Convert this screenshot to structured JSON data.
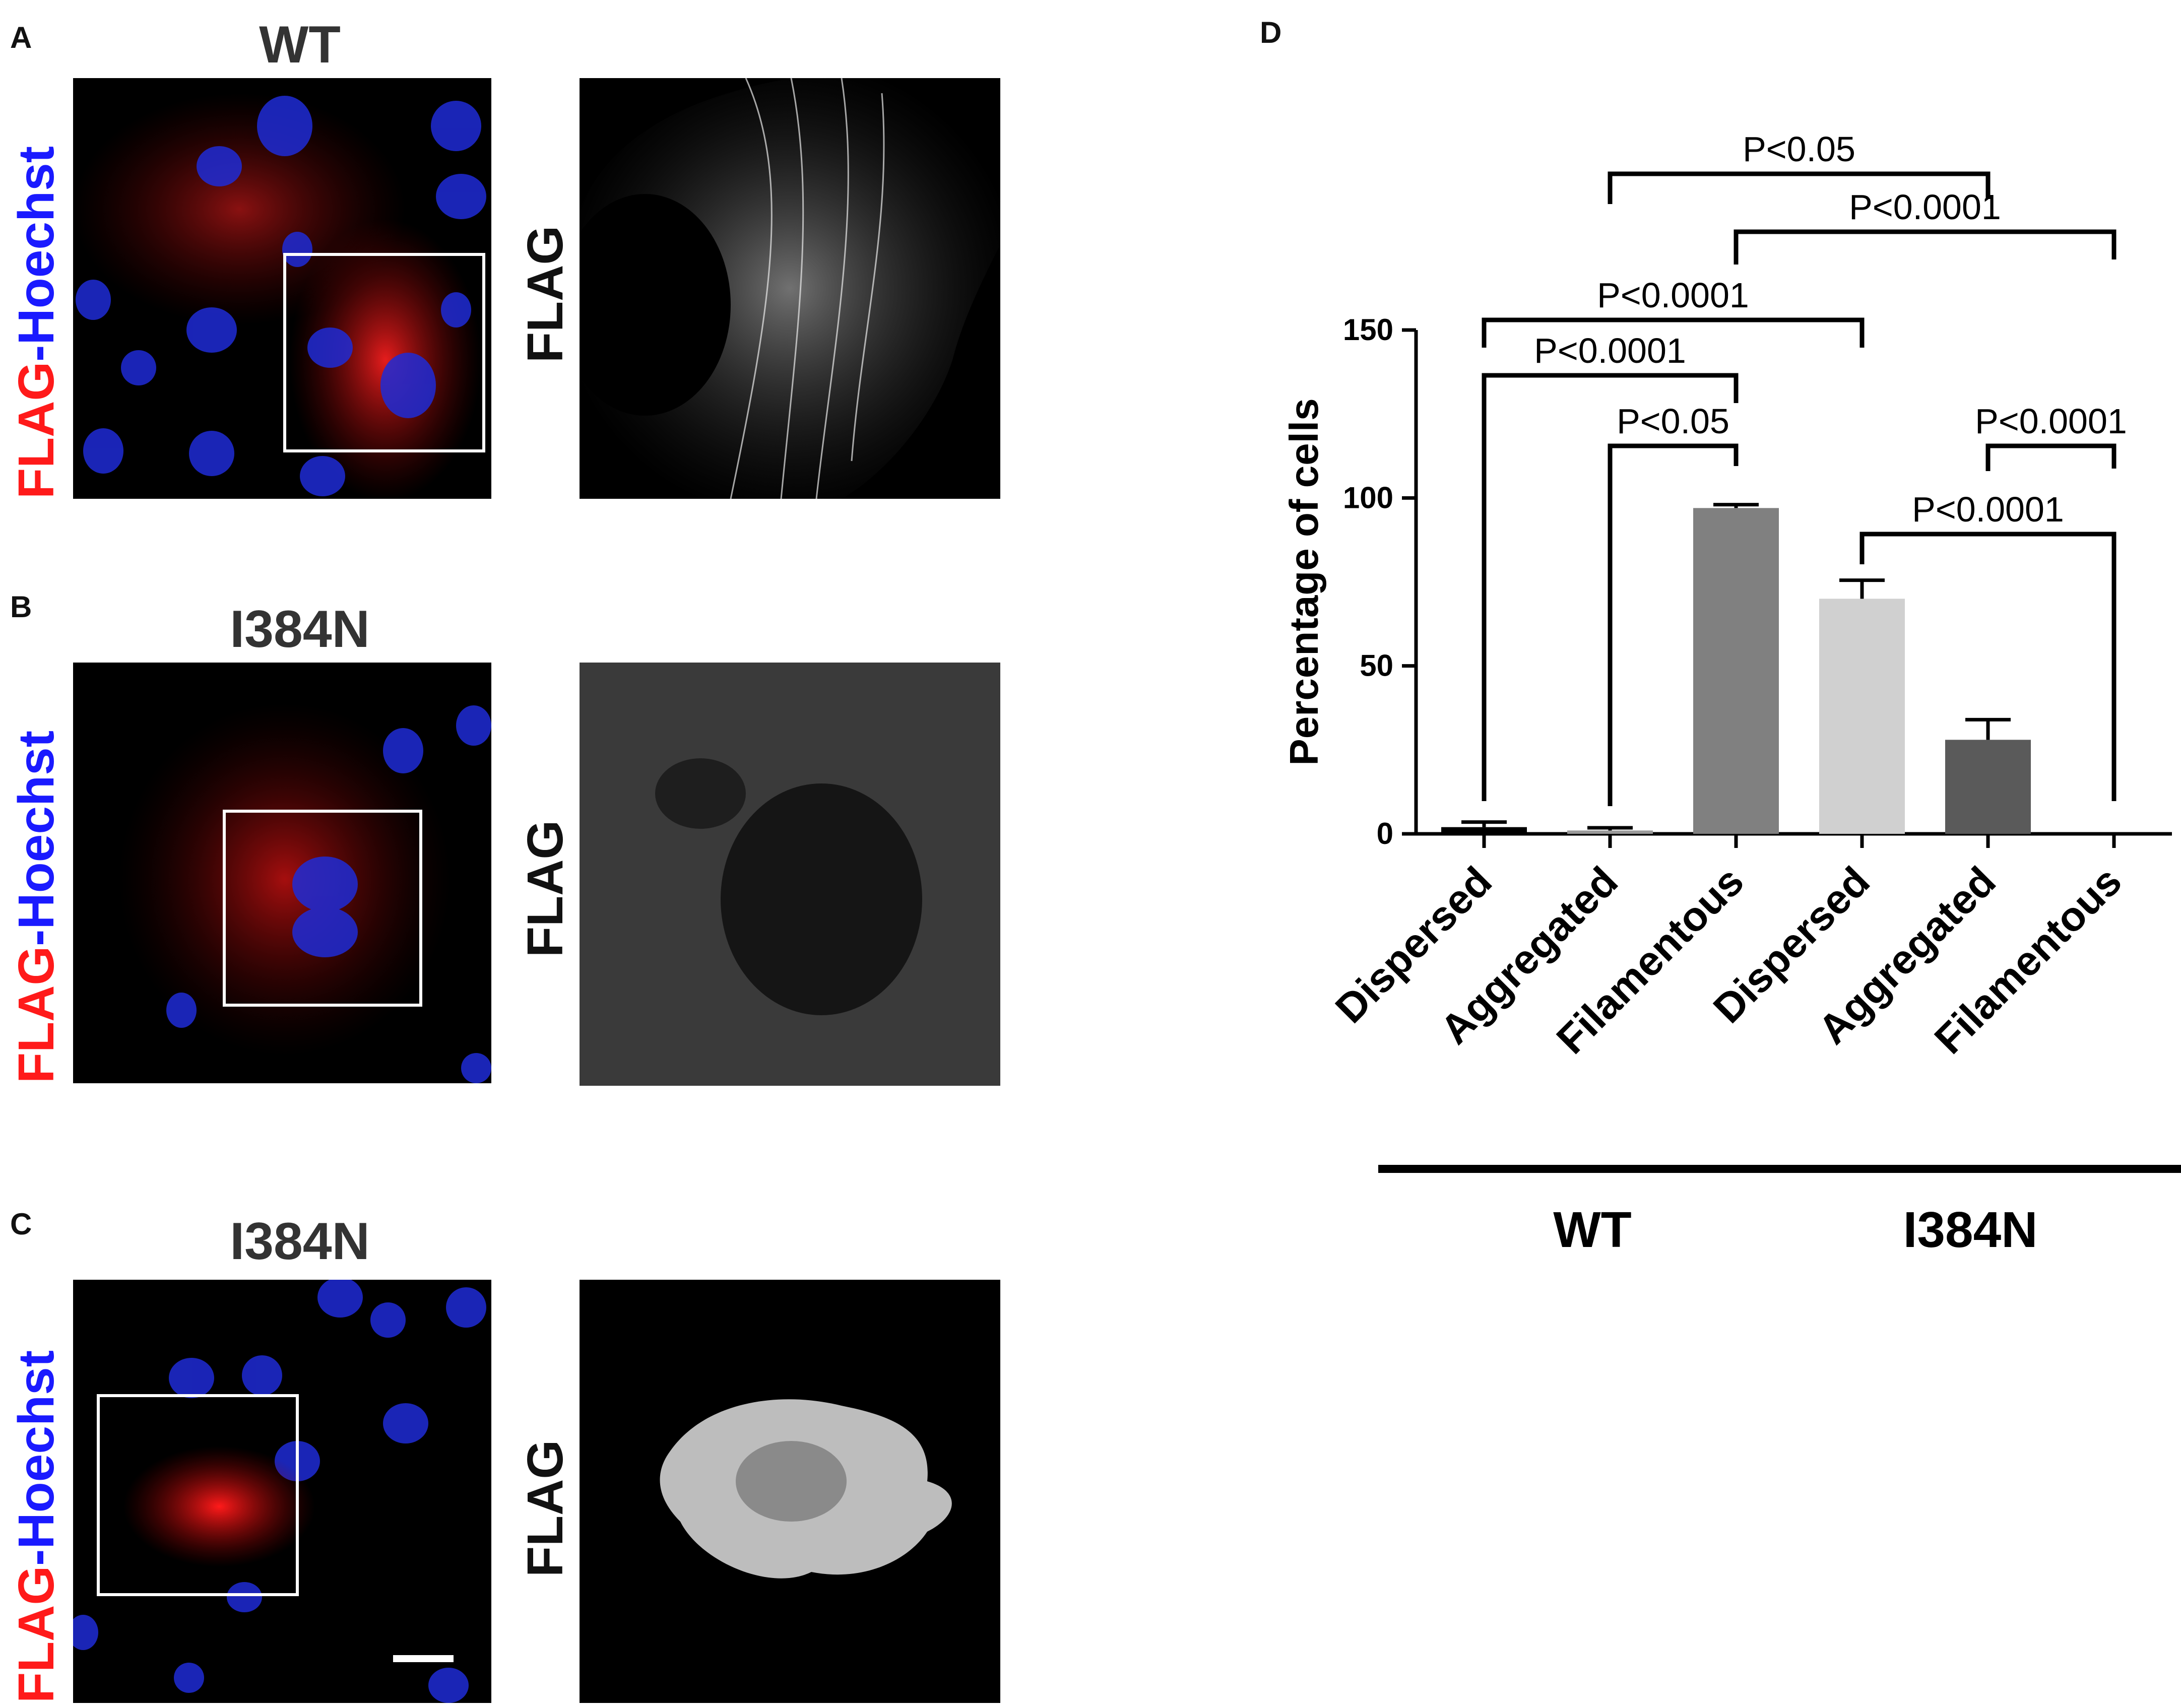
{
  "panels": [
    {
      "letter": "A",
      "condition": "WT"
    },
    {
      "letter": "B",
      "condition": "I384N"
    },
    {
      "letter": "C",
      "condition": "I384N"
    }
  ],
  "stain_label": {
    "flag": "FLAG",
    "dash": "-",
    "hoechst": "Hoechst"
  },
  "gray_label": "FLAG",
  "panel_d_letter": "D",
  "chart_data": {
    "type": "bar",
    "ylabel": "Percentage of cells",
    "ylim": [
      0,
      150
    ],
    "yticks": [
      0,
      50,
      100,
      150
    ],
    "categories": [
      "Dispersed",
      "Aggregated",
      "Filamentous",
      "Dispersed",
      "Aggregated",
      "Filamentous"
    ],
    "groups": [
      {
        "name": "WT",
        "categories": [
          0,
          1,
          2
        ]
      },
      {
        "name": "I384N",
        "categories": [
          3,
          4,
          5
        ]
      }
    ],
    "values": [
      2,
      1,
      97,
      70,
      28,
      0
    ],
    "errors": [
      1.5,
      0.8,
      1,
      5.5,
      6,
      0
    ],
    "bar_colors": [
      "#000000",
      "#9a9a9a",
      "#808080",
      "#d0d0d0",
      "#5a5a5a",
      "#ffffff"
    ],
    "comparisons": [
      {
        "a": 0,
        "b": 3,
        "label": "P<0.0001"
      },
      {
        "a": 0,
        "b": 2,
        "label": "P<0.0001"
      },
      {
        "a": 1,
        "b": 2,
        "label": "P<0.05"
      },
      {
        "a": 1,
        "b": 4,
        "label": "P<0.05"
      },
      {
        "a": 2,
        "b": 5,
        "label": "P<0.0001"
      },
      {
        "a": 4,
        "b": 5,
        "label": "P<0.0001"
      },
      {
        "a": 3,
        "b": 5,
        "label": "P<0.0001"
      }
    ]
  }
}
